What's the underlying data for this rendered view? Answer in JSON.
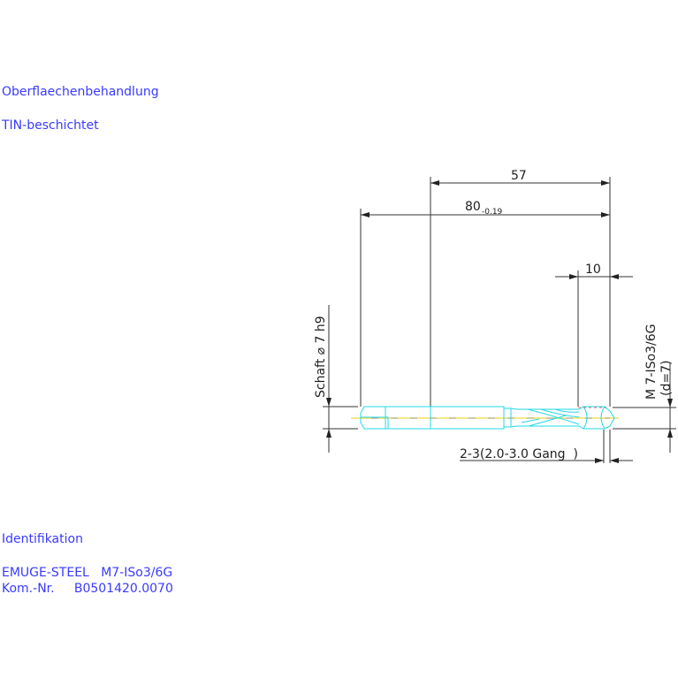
{
  "notes": {
    "surface_heading": "Oberflaechenbehandlung",
    "surface_value": "TIN-beschichtet",
    "ident_heading": "Identifikation",
    "ident_line1": "EMUGE-STEEL   M7-ISo3/6G",
    "ident_line2": "Kom.-Nr.     B0501420.0070"
  },
  "dimensions": {
    "thread_length": "57",
    "total_length": "80",
    "total_length_tol": "-0.19",
    "chamfer_length": "10",
    "shank": "Schaft ⌀ 7 h9",
    "thread": "M 7-ISo3/6G",
    "thread_d": "(d=7)",
    "chamfer_turns": "2-3(2.0-3.0 Gang  )"
  },
  "colors": {
    "text": "#3a3aff",
    "tool_outline": "#22d8e8",
    "centerline": "#f0e060",
    "dimension": "#333333"
  }
}
